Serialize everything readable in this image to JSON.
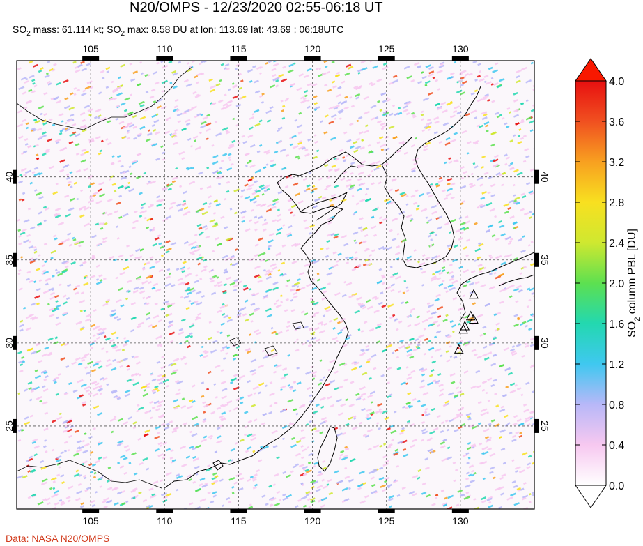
{
  "title": "N20/OMPS - 12/23/2020 02:55-06:18 UT",
  "subtitle": {
    "mass_prefix": "SO",
    "mass_sub": "2",
    "mass_text": " mass: 61.114 kt; SO",
    "max_sub": "2",
    "max_text": " max: 8.58 DU at lon: 113.69 lat: 43.69 ; 06:18UTC"
  },
  "credit": "Data: NASA N20/OMPS",
  "map": {
    "lon_range": [
      100,
      135
    ],
    "lat_range": [
      20,
      47
    ],
    "lon_ticks": [
      "105",
      "110",
      "115",
      "120",
      "125",
      "130"
    ],
    "lat_ticks": [
      "25",
      "30",
      "35",
      "40"
    ],
    "lon_values": [
      105,
      110,
      115,
      120,
      125,
      130
    ],
    "lat_values": [
      25,
      30,
      35,
      40
    ],
    "max_marker": {
      "lon": 113.69,
      "lat": 43.69
    },
    "volcano_icon": "triangle-volcano-icon"
  },
  "colorbar": {
    "label_prefix": "SO",
    "label_sub": "2",
    "label_text": " column PBL [DU]",
    "ticks": [
      "4.0",
      "3.6",
      "3.2",
      "2.8",
      "2.4",
      "2.0",
      "1.6",
      "1.2",
      "0.8",
      "0.4",
      "0.0"
    ],
    "colors": [
      "#ffffff",
      "#f7c8f0",
      "#b8b8f8",
      "#3fc8f0",
      "#23d8b0",
      "#5de050",
      "#cfe830",
      "#f8e020",
      "#f8a020",
      "#f05020",
      "#e81010"
    ],
    "over_color": "#f81800",
    "under_color": "#ffffff"
  },
  "colors": {
    "gridline": "#444444",
    "coast": "#000000"
  }
}
